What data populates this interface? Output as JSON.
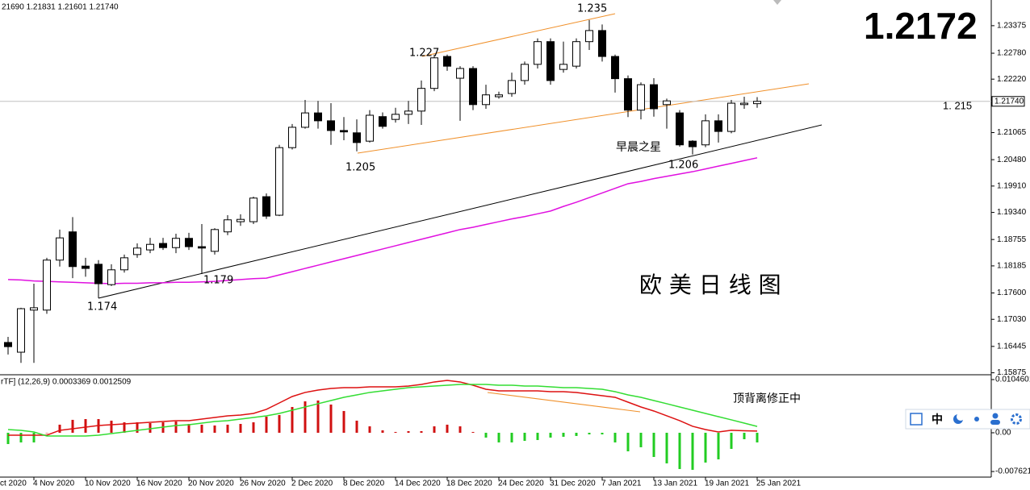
{
  "chart_data": {
    "type": "candlestick",
    "header": "21690 1.21831 1.21601 1.21740",
    "first_label": "ct 2020",
    "categories": [
      null,
      null,
      "4 Nov 2020",
      null,
      null,
      null,
      "10 Nov 2020",
      null,
      null,
      null,
      "16 Nov 2020",
      null,
      null,
      null,
      "20 Nov 2020",
      null,
      null,
      null,
      "26 Nov 2020",
      null,
      null,
      null,
      "2 Dec 2020",
      null,
      null,
      null,
      "8 Dec 2020",
      null,
      null,
      null,
      "14 Dec 2020",
      null,
      null,
      null,
      "18 Dec 2020",
      null,
      null,
      null,
      "24 Dec 2020",
      null,
      null,
      null,
      "31 Dec 2020",
      null,
      null,
      null,
      "7 Jan 2021",
      null,
      null,
      null,
      "13 Jan 2021",
      null,
      null,
      null,
      "19 Jan 2021",
      null,
      null,
      null,
      "25 Jan 2021"
    ],
    "open": [
      1.1653,
      1.1632,
      1.1723,
      1.1723,
      1.1831,
      1.1892,
      1.1818,
      1.1822,
      1.1778,
      1.181,
      1.1843,
      1.1853,
      1.1867,
      1.1858,
      1.1878,
      1.186,
      1.185,
      1.1892,
      1.1914,
      1.1914,
      1.1968,
      1.1928,
      1.2074,
      1.2118,
      1.2149,
      1.2132,
      1.2111,
      1.2106,
      1.2088,
      1.2141,
      1.2135,
      1.2146,
      1.2153,
      1.2202,
      1.2271,
      1.2224,
      1.2245,
      1.2167,
      1.2184,
      1.2191,
      1.2219,
      1.2254,
      1.2303,
      1.2243,
      1.225,
      1.2303,
      1.2327,
      1.2271,
      1.2223,
      1.2155,
      1.221,
      1.2167,
      1.2149,
      1.2088,
      1.208,
      1.2132,
      1.2109,
      1.2167,
      1.2169
    ],
    "high": [
      1.1665,
      1.1728,
      1.178,
      1.1836,
      1.1897,
      1.1924,
      1.1836,
      1.1831,
      1.1822,
      1.1843,
      1.1867,
      1.1879,
      1.1879,
      1.1888,
      1.189,
      1.1909,
      1.19,
      1.1928,
      1.193,
      1.1968,
      1.1975,
      1.208,
      1.2125,
      1.2177,
      1.2175,
      1.217,
      1.214,
      1.2135,
      1.2155,
      1.215,
      1.216,
      1.2175,
      1.2219,
      1.2275,
      1.2275,
      1.225,
      1.225,
      1.221,
      1.2195,
      1.2236,
      1.226,
      1.231,
      1.231,
      1.2303,
      1.231,
      1.235,
      1.234,
      1.2275,
      1.223,
      1.2215,
      1.2224,
      1.218,
      1.2155,
      1.209,
      1.2146,
      1.2146,
      1.2177,
      1.2184,
      1.21831
    ],
    "low": [
      1.1627,
      1.1609,
      1.1609,
      1.1715,
      1.1817,
      1.1792,
      1.1795,
      1.1749,
      1.1775,
      1.1804,
      1.1836,
      1.1846,
      1.1853,
      1.1846,
      1.1853,
      1.1801,
      1.1843,
      1.1885,
      1.1905,
      1.1909,
      1.192,
      1.1926,
      1.207,
      1.2115,
      1.2115,
      1.208,
      1.209,
      1.2066,
      1.2085,
      1.2115,
      1.2128,
      1.2125,
      1.2123,
      1.2196,
      1.224,
      1.2132,
      1.2155,
      1.2158,
      1.218,
      1.2184,
      1.221,
      1.2245,
      1.221,
      1.2236,
      1.2245,
      1.2285,
      1.226,
      1.2193,
      1.214,
      1.2135,
      1.2141,
      1.2115,
      1.2076,
      1.2059,
      1.2075,
      1.2085,
      1.2105,
      1.2158,
      1.21601
    ],
    "close": [
      1.1644,
      1.1726,
      1.1728,
      1.1831,
      1.1879,
      1.1817,
      1.1813,
      1.178,
      1.181,
      1.1836,
      1.1857,
      1.1865,
      1.1858,
      1.1878,
      1.186,
      1.1857,
      1.1897,
      1.1918,
      1.1919,
      1.1965,
      1.1926,
      1.2074,
      1.2118,
      1.2149,
      1.2132,
      1.2111,
      1.2108,
      1.2085,
      1.2144,
      1.212,
      1.2146,
      1.2153,
      1.2202,
      1.2268,
      1.225,
      1.2245,
      1.2167,
      1.2188,
      1.2188,
      1.2219,
      1.2254,
      1.2303,
      1.2219,
      1.2254,
      1.2303,
      1.2327,
      1.2271,
      1.2223,
      1.2155,
      1.221,
      1.2158,
      1.2175,
      1.208,
      1.2076,
      1.2132,
      1.2109,
      1.217,
      1.217,
      1.2174
    ],
    "up_color": "#ffffff",
    "down_color": "#000000",
    "ma": {
      "color": "#e010e0",
      "values": [
        1.1789,
        1.1788,
        1.1786,
        1.1785,
        1.1784,
        1.1783,
        1.1782,
        1.1781,
        1.178,
        1.1781,
        1.1781,
        1.1782,
        1.1782,
        1.1783,
        1.1783,
        1.1784,
        1.1785,
        1.1787,
        1.1789,
        1.1791,
        1.1792,
        1.1799,
        1.1806,
        1.1813,
        1.182,
        1.1827,
        1.1834,
        1.1841,
        1.1848,
        1.1855,
        1.1862,
        1.1869,
        1.1876,
        1.1883,
        1.189,
        1.1897,
        1.1902,
        1.1908,
        1.1914,
        1.192,
        1.1925,
        1.1931,
        1.1937,
        1.1947,
        1.1956,
        1.1966,
        1.1976,
        1.1986,
        1.1996,
        1.2001,
        1.2007,
        1.2012,
        1.2017,
        1.2022,
        1.2028,
        1.2034,
        1.204,
        1.2046,
        1.2052
      ]
    },
    "ylim": [
      1.1585,
      1.2393
    ],
    "yticks": [
      1.23375,
      {
        "value": 1.2278,
        "label": "1.22780"
      },
      {
        "value": 1.2222,
        "label": "1.22220"
      },
      1.21065,
      {
        "value": 1.2048,
        "label": "1.20480"
      },
      {
        "value": 1.1991,
        "label": "1.19910"
      },
      {
        "value": 1.1934,
        "label": "1.19340"
      },
      1.18755,
      1.18185,
      {
        "value": 1.176,
        "label": "1.17600"
      },
      {
        "value": 1.1703,
        "label": "1.17030"
      },
      1.16445,
      1.15875
    ],
    "current": {
      "value": 1.2174,
      "label": "1.21740"
    },
    "big_price": "1.2172",
    "side_note": "1. 215",
    "annotations": [
      "1.227",
      "1.235",
      "1.205",
      "1.206",
      "1.174",
      "1.179",
      "早晨之星",
      "欧 美 日 线 图"
    ],
    "macd": {
      "title": "rTF] (12,26,9) 0.0003369 0.0012509",
      "note": "顶背离修正中",
      "ylim": [
        -0.00872,
        0.01125
      ],
      "yticks": [
        0.0104601,
        {
          "value": 0,
          "label": "0.00"
        },
        -0.007621
      ],
      "up_color": "#d01010",
      "down_color": "#22cc22",
      "histogram": [
        -0.00222,
        -0.0019,
        -0.0019,
        0,
        0.00159,
        0.00254,
        0.00269,
        0.00269,
        0.00238,
        0.00206,
        0.00206,
        0.0019,
        0.00206,
        0.00222,
        0.00174,
        0.00159,
        0.00143,
        0.00159,
        0.00174,
        0.00206,
        0.00317,
        0.00349,
        0.00507,
        0.00618,
        0.00634,
        0.00555,
        0.00428,
        0.00238,
        0.00127,
        0.00048,
        0.00016,
        0.00032,
        0.00032,
        0.00127,
        0.00159,
        0.00127,
        0.00016,
        -0.00095,
        -0.0019,
        -0.0019,
        -0.00159,
        -0.00143,
        -0.00095,
        -0.00079,
        -0.00063,
        -0.00032,
        -0.00032,
        -0.0019,
        -0.00365,
        -0.00285,
        -0.00476,
        -0.00602,
        -0.00713,
        -0.00729,
        -0.00586,
        -0.00523,
        -0.00317,
        -0.00127,
        -0.0019
      ],
      "main": {
        "color": "#dd1111",
        "values": [
          -0.00048,
          -0.00048,
          -0.00048,
          -0.00048,
          0.00048,
          0.00079,
          0.00111,
          0.00143,
          0.00159,
          0.00174,
          0.0019,
          0.00206,
          0.00222,
          0.00238,
          0.00238,
          0.00269,
          0.00301,
          0.00333,
          0.00349,
          0.0038,
          0.0046,
          0.00586,
          0.00713,
          0.00793,
          0.0084,
          0.00872,
          0.00888,
          0.00888,
          0.00903,
          0.00903,
          0.00903,
          0.00919,
          0.00951,
          0.00999,
          0.0103,
          0.00999,
          0.00935,
          0.00856,
          0.00824,
          0.00824,
          0.00824,
          0.00824,
          0.00808,
          0.00808,
          0.00793,
          0.00761,
          0.00729,
          0.00697,
          0.00602,
          0.00507,
          0.00428,
          0.00333,
          0.00238,
          0.00127,
          0.00063,
          0.00016,
          0.0005,
          0.0004,
          0.0003369
        ]
      },
      "signal": {
        "color": "#33dd33",
        "values": [
          0.00063,
          0.00048,
          0.00016,
          -0.00063,
          -0.00063,
          -0.00063,
          -0.00063,
          -0.00048,
          -0.00016,
          0.00016,
          0.00048,
          0.00079,
          0.00111,
          0.00143,
          0.00159,
          0.0019,
          0.00222,
          0.00238,
          0.00269,
          0.00301,
          0.00333,
          0.0038,
          0.00444,
          0.00507,
          0.00571,
          0.00634,
          0.00697,
          0.00745,
          0.00793,
          0.00824,
          0.00856,
          0.00888,
          0.00903,
          0.00919,
          0.00935,
          0.00951,
          0.00951,
          0.00951,
          0.00935,
          0.00935,
          0.00919,
          0.00919,
          0.00903,
          0.00888,
          0.00888,
          0.00872,
          0.00856,
          0.00808,
          0.00745,
          0.00697,
          0.00634,
          0.00571,
          0.00507,
          0.00444,
          0.0038,
          0.00317,
          0.00254,
          0.0019,
          0.0012509
        ]
      }
    },
    "toolbar": {
      "lang": "中"
    }
  }
}
